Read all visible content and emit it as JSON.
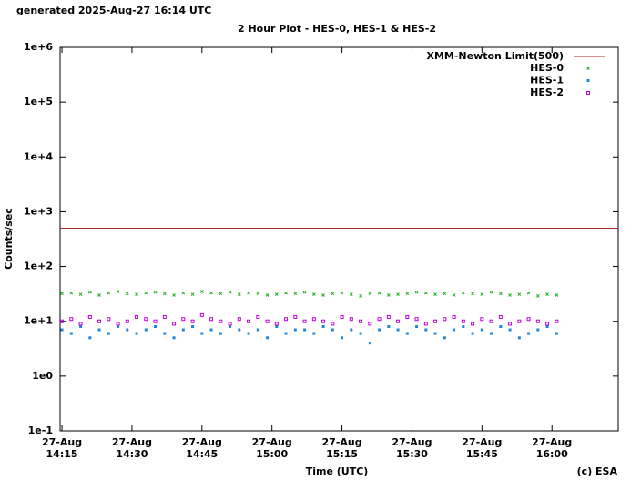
{
  "chart_data": {
    "type": "scatter",
    "header": "generated 2025-Aug-27 16:14 UTC",
    "title": "2 Hour Plot - HES-0, HES-1 & HES-2",
    "xlabel": "Time (UTC)",
    "ylabel": "Counts/sec",
    "annotation": "(c) ESA",
    "log_y": true,
    "legend": "top-right",
    "xlim": [
      "27-Aug 14:14:36",
      "27-Aug 16:14:12"
    ],
    "ylim": [
      0.1,
      1000000
    ],
    "xticks": [
      "27-Aug 14:15",
      "27-Aug 14:30",
      "27-Aug 14:45",
      "27-Aug 15:00",
      "27-Aug 15:15",
      "27-Aug 15:30",
      "27-Aug 15:45",
      "27-Aug 16:00"
    ],
    "yticks": [
      {
        "value": 0.1,
        "label": "1e-1"
      },
      {
        "value": 1,
        "label": "1e0"
      },
      {
        "value": 10,
        "label": "1e+1"
      },
      {
        "value": 100,
        "label": "1e+2"
      },
      {
        "value": 1000,
        "label": "1e+3"
      },
      {
        "value": 10000,
        "label": "1e+4"
      },
      {
        "value": 100000,
        "label": "1e+5"
      },
      {
        "value": 1000000,
        "label": "1e+6"
      }
    ],
    "limit": {
      "name": "XMM-Newton Limit(500)",
      "value": 500,
      "color": "#b22222"
    },
    "x": [
      "27-Aug 14:15",
      "27-Aug 14:17",
      "27-Aug 14:19",
      "27-Aug 14:21",
      "27-Aug 14:23",
      "27-Aug 14:25",
      "27-Aug 14:27",
      "27-Aug 14:29",
      "27-Aug 14:31",
      "27-Aug 14:33",
      "27-Aug 14:35",
      "27-Aug 14:37",
      "27-Aug 14:39",
      "27-Aug 14:41",
      "27-Aug 14:43",
      "27-Aug 14:45",
      "27-Aug 14:47",
      "27-Aug 14:49",
      "27-Aug 14:51",
      "27-Aug 14:53",
      "27-Aug 14:55",
      "27-Aug 14:57",
      "27-Aug 14:59",
      "27-Aug 15:01",
      "27-Aug 15:03",
      "27-Aug 15:05",
      "27-Aug 15:07",
      "27-Aug 15:09",
      "27-Aug 15:11",
      "27-Aug 15:13",
      "27-Aug 15:15",
      "27-Aug 15:17",
      "27-Aug 15:19",
      "27-Aug 15:21",
      "27-Aug 15:23",
      "27-Aug 15:25",
      "27-Aug 15:27",
      "27-Aug 15:29",
      "27-Aug 15:31",
      "27-Aug 15:33",
      "27-Aug 15:35",
      "27-Aug 15:37",
      "27-Aug 15:39",
      "27-Aug 15:41",
      "27-Aug 15:43",
      "27-Aug 15:45",
      "27-Aug 15:47",
      "27-Aug 15:49",
      "27-Aug 15:51",
      "27-Aug 15:53",
      "27-Aug 15:55",
      "27-Aug 15:57",
      "27-Aug 15:59",
      "27-Aug 16:01"
    ],
    "series": [
      {
        "name": "HES-0",
        "color": "#22b022",
        "marker": "cross",
        "values": [
          32,
          33,
          31,
          34,
          30,
          33,
          35,
          32,
          31,
          33,
          34,
          32,
          30,
          33,
          31,
          35,
          33,
          32,
          34,
          31,
          33,
          32,
          30,
          31,
          33,
          32,
          34,
          31,
          30,
          32,
          33,
          31,
          29,
          32,
          33,
          30,
          31,
          32,
          34,
          33,
          31,
          32,
          30,
          33,
          32,
          31,
          34,
          32,
          30,
          31,
          33,
          29,
          31,
          30
        ]
      },
      {
        "name": "HES-1",
        "color": "#1a86e0",
        "marker": "square",
        "values": [
          7,
          6,
          8,
          5,
          7,
          6,
          8,
          7,
          6,
          7,
          8,
          6,
          5,
          7,
          8,
          6,
          7,
          6,
          8,
          7,
          6,
          7,
          5,
          8,
          6,
          7,
          7,
          6,
          8,
          7,
          5,
          7,
          6,
          4,
          7,
          8,
          7,
          6,
          8,
          7,
          6,
          5,
          7,
          8,
          6,
          7,
          6,
          8,
          7,
          5,
          6,
          7,
          8,
          6
        ]
      },
      {
        "name": "HES-2",
        "color": "#c000e0",
        "marker": "open-square",
        "values": [
          10,
          11,
          9,
          12,
          10,
          11,
          9,
          10,
          12,
          11,
          10,
          12,
          9,
          11,
          10,
          13,
          11,
          10,
          9,
          11,
          10,
          12,
          10,
          9,
          11,
          12,
          10,
          11,
          10,
          9,
          12,
          11,
          10,
          9,
          11,
          12,
          10,
          12,
          11,
          9,
          10,
          11,
          12,
          10,
          9,
          11,
          10,
          12,
          9,
          10,
          11,
          10,
          9,
          10
        ]
      }
    ]
  }
}
